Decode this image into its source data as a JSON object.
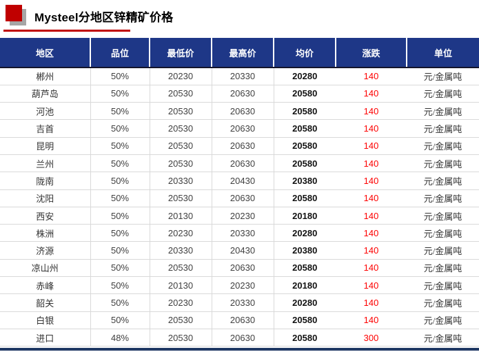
{
  "header": {
    "title": "Mysteel分地区锌精矿价格"
  },
  "colors": {
    "header_bg": "#1e3787",
    "logo_red": "#c00000",
    "logo_gray": "#a6a6a6",
    "title_underline": "#c00000",
    "change_text": "#fe0000",
    "bottom_bar": "#1f3864",
    "row_border": "#d9d9d9"
  },
  "chart_data": {
    "type": "table",
    "title": "Mysteel分地区锌精矿价格",
    "headers": [
      "地区",
      "品位",
      "最低价",
      "最高价",
      "均价",
      "涨跌",
      "单位"
    ],
    "rows": [
      [
        "郴州",
        "50%",
        "20230",
        "20330",
        "20280",
        "140",
        "元/金属吨"
      ],
      [
        "葫芦岛",
        "50%",
        "20530",
        "20630",
        "20580",
        "140",
        "元/金属吨"
      ],
      [
        "河池",
        "50%",
        "20530",
        "20630",
        "20580",
        "140",
        "元/金属吨"
      ],
      [
        "吉首",
        "50%",
        "20530",
        "20630",
        "20580",
        "140",
        "元/金属吨"
      ],
      [
        "昆明",
        "50%",
        "20530",
        "20630",
        "20580",
        "140",
        "元/金属吨"
      ],
      [
        "兰州",
        "50%",
        "20530",
        "20630",
        "20580",
        "140",
        "元/金属吨"
      ],
      [
        "陇南",
        "50%",
        "20330",
        "20430",
        "20380",
        "140",
        "元/金属吨"
      ],
      [
        "沈阳",
        "50%",
        "20530",
        "20630",
        "20580",
        "140",
        "元/金属吨"
      ],
      [
        "西安",
        "50%",
        "20130",
        "20230",
        "20180",
        "140",
        "元/金属吨"
      ],
      [
        "株洲",
        "50%",
        "20230",
        "20330",
        "20280",
        "140",
        "元/金属吨"
      ],
      [
        "济源",
        "50%",
        "20330",
        "20430",
        "20380",
        "140",
        "元/金属吨"
      ],
      [
        "凉山州",
        "50%",
        "20530",
        "20630",
        "20580",
        "140",
        "元/金属吨"
      ],
      [
        "赤峰",
        "50%",
        "20130",
        "20230",
        "20180",
        "140",
        "元/金属吨"
      ],
      [
        "韶关",
        "50%",
        "20230",
        "20330",
        "20280",
        "140",
        "元/金属吨"
      ],
      [
        "白银",
        "50%",
        "20530",
        "20630",
        "20580",
        "140",
        "元/金属吨"
      ],
      [
        "进口",
        "48%",
        "20530",
        "20630",
        "20580",
        "300",
        "元/金属吨"
      ]
    ]
  }
}
